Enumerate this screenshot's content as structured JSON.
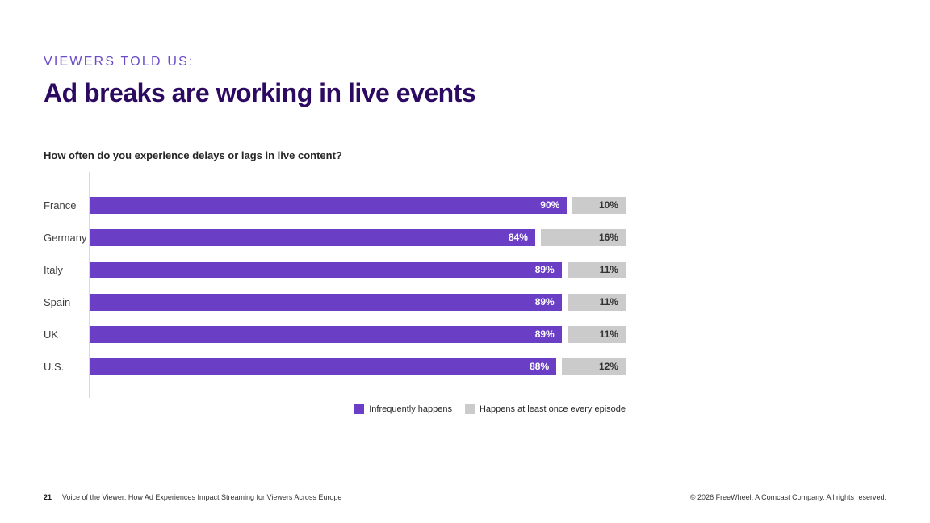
{
  "slide": {
    "eyebrow": "VIEWERS TOLD US:",
    "title": "Ad breaks are working in live events",
    "question": "How often do you experience delays or lags in live content?"
  },
  "chart_data": {
    "type": "bar",
    "orientation": "horizontal",
    "stacked": true,
    "title": "How often do you experience delays or lags in live content?",
    "categories": [
      "France",
      "Germany",
      "Italy",
      "Spain",
      "UK",
      "U.S."
    ],
    "series": [
      {
        "name": "Infrequently happens",
        "color": "#6B3EC6",
        "label_color": "#FFFFFF",
        "values": [
          90,
          84,
          89,
          89,
          89,
          88
        ]
      },
      {
        "name": "Happens at least once every episode",
        "color": "#CBCBCB",
        "label_color": "#333333",
        "values": [
          10,
          16,
          11,
          11,
          11,
          12
        ]
      }
    ],
    "value_suffix": "%",
    "xlim": [
      0,
      100
    ],
    "grid": false,
    "legend_position": "bottom-right"
  },
  "footer": {
    "page_number": "21",
    "left_text": "Voice of the Viewer: How Ad Experiences Impact Streaming for Viewers Across Europe",
    "right_text": "© 2026 FreeWheel. A Comcast Company. All rights reserved."
  },
  "colors": {
    "accent_purple": "#6B3EC6",
    "title_dark_purple": "#2D0A61",
    "eyebrow_purple": "#6C4BC8",
    "secondary_gray": "#CBCBCB",
    "axis_gray": "#D9D9D9",
    "background": "#FFFFFF"
  }
}
